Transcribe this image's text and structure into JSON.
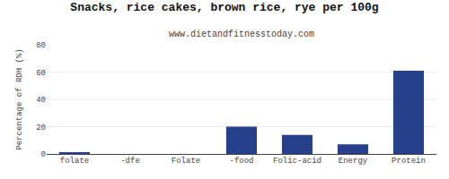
{
  "chart_data": {
    "type": "bar",
    "title": "Snacks, rice cakes, brown rice, rye per 100g",
    "subtitle": "www.dietandfitnesstoday.com",
    "categories": [
      "folate",
      "-dfe",
      "Folate",
      "-food",
      "Folic-acid",
      "Energy",
      "Protein"
    ],
    "values": [
      1,
      0,
      0,
      20,
      14,
      7,
      61
    ],
    "color": "#27408B",
    "ylabel": "Percentage of RDH (%)",
    "ylim": [
      0,
      80
    ],
    "yticks": [
      0,
      20,
      40,
      60,
      80
    ],
    "grid": true
  }
}
